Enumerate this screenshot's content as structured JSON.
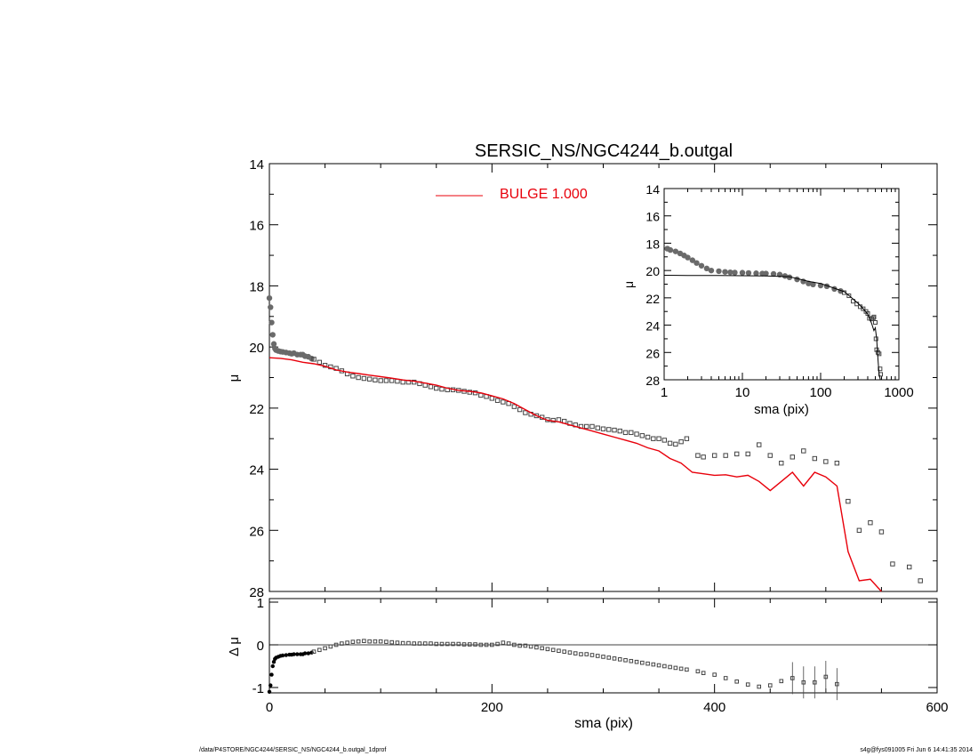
{
  "footer": {
    "path": "/data/P4STORE/NGC4244/SERSIC_NS/NGC4244_b.outgal_1dprof",
    "stamp": "s4g@fys091005  Fri Jun  6 14:41:35 2014"
  },
  "colors": {
    "model": "#e8000b",
    "points": "#555555",
    "axes": "#000000"
  },
  "chart_data": [
    {
      "id": "main",
      "type": "scatter",
      "title": "SERSIC_NS/NGC4244_b.outgal",
      "ylabel": "μ",
      "xlim": [
        0,
        600
      ],
      "ylim": [
        28,
        14
      ],
      "yticks": [
        14,
        16,
        18,
        20,
        22,
        24,
        26,
        28
      ],
      "legend": {
        "label": "BULGE  1.000",
        "placement": "top-center"
      },
      "series": [
        {
          "name": "BULGE  1.000",
          "kind": "line",
          "x": [
            0,
            10,
            20,
            30,
            40,
            50,
            60,
            70,
            80,
            90,
            100,
            110,
            120,
            130,
            140,
            150,
            160,
            170,
            180,
            190,
            200,
            210,
            220,
            230,
            240,
            250,
            260,
            270,
            280,
            290,
            300,
            310,
            320,
            330,
            340,
            350,
            360,
            370,
            380,
            390,
            400,
            410,
            420,
            430,
            440,
            450,
            460,
            470,
            480,
            490,
            500,
            510,
            520,
            530,
            540,
            550
          ],
          "y": [
            20.35,
            20.37,
            20.42,
            20.5,
            20.55,
            20.63,
            20.75,
            20.82,
            20.87,
            20.92,
            20.97,
            21.02,
            21.08,
            21.12,
            21.18,
            21.25,
            21.35,
            21.42,
            21.45,
            21.5,
            21.6,
            21.7,
            21.85,
            22.05,
            22.25,
            22.4,
            22.45,
            22.55,
            22.65,
            22.75,
            22.85,
            22.95,
            23.05,
            23.15,
            23.3,
            23.4,
            23.65,
            23.8,
            24.1,
            24.15,
            24.2,
            24.18,
            24.25,
            24.2,
            24.4,
            24.7,
            24.4,
            24.1,
            24.55,
            24.1,
            24.25,
            24.55,
            26.7,
            27.65,
            27.6,
            28.0
          ]
        },
        {
          "name": "",
          "kind": "points",
          "x": [
            0,
            1,
            2,
            3,
            4,
            5,
            6,
            8,
            10,
            12,
            15,
            18,
            20,
            22,
            25,
            28,
            30,
            32,
            35,
            38,
            40,
            45,
            50,
            55,
            60,
            65,
            70,
            75,
            80,
            85,
            90,
            95,
            100,
            105,
            110,
            115,
            120,
            125,
            130,
            135,
            140,
            145,
            150,
            155,
            160,
            165,
            170,
            175,
            180,
            185,
            190,
            195,
            200,
            205,
            210,
            215,
            220,
            225,
            230,
            235,
            240,
            245,
            250,
            255,
            260,
            265,
            270,
            275,
            280,
            285,
            290,
            295,
            300,
            305,
            310,
            315,
            320,
            325,
            330,
            335,
            340,
            345,
            350,
            355,
            360,
            365,
            370,
            375,
            385,
            390,
            400,
            410,
            420,
            430,
            440,
            450,
            460,
            470,
            480,
            490,
            500,
            510,
            520,
            530,
            540,
            550,
            560,
            575,
            585
          ],
          "y": [
            18.4,
            18.7,
            19.2,
            19.6,
            19.9,
            20.05,
            20.1,
            20.13,
            20.15,
            20.16,
            20.18,
            20.2,
            20.22,
            20.2,
            20.25,
            20.25,
            20.25,
            20.3,
            20.32,
            20.38,
            20.4,
            20.5,
            20.6,
            20.65,
            20.7,
            20.78,
            20.88,
            20.95,
            21.0,
            21.03,
            21.05,
            21.08,
            21.1,
            21.1,
            21.1,
            21.12,
            21.15,
            21.15,
            21.15,
            21.2,
            21.25,
            21.3,
            21.35,
            21.38,
            21.4,
            21.4,
            21.42,
            21.45,
            21.48,
            21.5,
            21.58,
            21.62,
            21.68,
            21.75,
            21.8,
            21.85,
            21.95,
            22.05,
            22.15,
            22.2,
            22.25,
            22.3,
            22.38,
            22.4,
            22.38,
            22.43,
            22.5,
            22.55,
            22.6,
            22.6,
            22.6,
            22.65,
            22.68,
            22.7,
            22.72,
            22.75,
            22.8,
            22.8,
            22.85,
            22.9,
            22.95,
            23.0,
            23.0,
            23.05,
            23.15,
            23.18,
            23.1,
            23.0,
            23.55,
            23.6,
            23.55,
            23.55,
            23.5,
            23.5,
            23.2,
            23.55,
            23.8,
            23.6,
            23.4,
            23.65,
            23.75,
            23.8,
            25.05,
            26.0,
            25.75,
            26.05,
            27.1,
            27.2,
            27.65
          ]
        }
      ]
    },
    {
      "id": "residual",
      "type": "scatter",
      "ylabel": "Δ μ",
      "xlabel": "sma (pix)",
      "xlim": [
        0,
        600
      ],
      "ylim": [
        -1.1,
        1.05
      ],
      "xticks": [
        0,
        200,
        400,
        600
      ],
      "yticks": [
        1,
        0,
        -1
      ],
      "series": [
        {
          "name": "",
          "kind": "points",
          "x": [
            0,
            1,
            2,
            3,
            4,
            5,
            6,
            8,
            10,
            12,
            15,
            18,
            20,
            22,
            25,
            28,
            30,
            32,
            35,
            38,
            40,
            45,
            50,
            55,
            60,
            65,
            70,
            75,
            80,
            85,
            90,
            95,
            100,
            105,
            110,
            115,
            120,
            125,
            130,
            135,
            140,
            145,
            150,
            155,
            160,
            165,
            170,
            175,
            180,
            185,
            190,
            195,
            200,
            205,
            210,
            215,
            220,
            225,
            230,
            235,
            240,
            245,
            250,
            255,
            260,
            265,
            270,
            275,
            280,
            285,
            290,
            295,
            300,
            305,
            310,
            315,
            320,
            325,
            330,
            335,
            340,
            345,
            350,
            355,
            360,
            365,
            370,
            375,
            385,
            390,
            400,
            410,
            420,
            430,
            440,
            450,
            460,
            470,
            480,
            490,
            500,
            510
          ],
          "y": [
            -1.1,
            -0.95,
            -0.7,
            -0.5,
            -0.4,
            -0.33,
            -0.3,
            -0.28,
            -0.26,
            -0.25,
            -0.24,
            -0.23,
            -0.23,
            -0.22,
            -0.22,
            -0.22,
            -0.22,
            -0.2,
            -0.2,
            -0.18,
            -0.16,
            -0.12,
            -0.08,
            -0.04,
            0.0,
            0.03,
            0.05,
            0.07,
            0.08,
            0.09,
            0.08,
            0.08,
            0.08,
            0.07,
            0.06,
            0.05,
            0.04,
            0.04,
            0.03,
            0.03,
            0.03,
            0.03,
            0.02,
            0.02,
            0.02,
            0.02,
            0.02,
            0.01,
            0.01,
            0.01,
            0.0,
            0.0,
            0.0,
            0.02,
            0.05,
            0.03,
            0.0,
            -0.02,
            -0.02,
            -0.04,
            -0.06,
            -0.08,
            -0.1,
            -0.12,
            -0.14,
            -0.16,
            -0.18,
            -0.2,
            -0.22,
            -0.22,
            -0.24,
            -0.26,
            -0.28,
            -0.3,
            -0.32,
            -0.34,
            -0.36,
            -0.38,
            -0.4,
            -0.42,
            -0.44,
            -0.46,
            -0.48,
            -0.5,
            -0.52,
            -0.54,
            -0.56,
            -0.58,
            -0.62,
            -0.66,
            -0.7,
            -0.78,
            -0.86,
            -0.93,
            -0.98,
            -0.95,
            -0.85,
            -0.78,
            -0.88,
            -0.88,
            -0.75,
            -0.92
          ]
        }
      ]
    },
    {
      "id": "inset",
      "type": "scatter",
      "ylabel": "μ",
      "xlabel": "sma (pix)",
      "xscale": "log",
      "xlim": [
        1,
        1000
      ],
      "ylim": [
        28,
        14
      ],
      "xticks": [
        1,
        10,
        100,
        1000
      ],
      "yticks": [
        14,
        16,
        18,
        20,
        22,
        24,
        26,
        28
      ],
      "series": [
        {
          "name": "",
          "kind": "line",
          "x": [
            1,
            2,
            5,
            10,
            20,
            40,
            70,
            100,
            150,
            200,
            250,
            300,
            350,
            400,
            450,
            480,
            500,
            520,
            540,
            560,
            580
          ],
          "y": [
            20.35,
            20.36,
            20.37,
            20.38,
            20.4,
            20.45,
            20.8,
            20.95,
            21.3,
            21.55,
            22.0,
            22.4,
            22.8,
            23.2,
            23.9,
            24.4,
            24.2,
            25.0,
            26.5,
            27.6,
            28.0
          ]
        },
        {
          "name": "",
          "kind": "points",
          "x": [
            1.1,
            1.2,
            1.4,
            1.6,
            1.8,
            2,
            2.3,
            2.6,
            3,
            3.5,
            4,
            5,
            6,
            7,
            8,
            10,
            12,
            15,
            18,
            20,
            25,
            30,
            35,
            40,
            50,
            60,
            70,
            80,
            100,
            120,
            150,
            180,
            200,
            230,
            260,
            290,
            320,
            350,
            380,
            400,
            420,
            450,
            470,
            480,
            500,
            510,
            520,
            540,
            560,
            575,
            585
          ],
          "y": [
            18.4,
            18.5,
            18.6,
            18.75,
            18.9,
            19.05,
            19.25,
            19.45,
            19.65,
            19.85,
            20.0,
            20.05,
            20.1,
            20.13,
            20.15,
            20.16,
            20.18,
            20.2,
            20.22,
            20.22,
            20.25,
            20.3,
            20.4,
            20.5,
            20.65,
            20.8,
            20.95,
            21.02,
            21.1,
            21.15,
            21.35,
            21.5,
            21.62,
            21.85,
            22.25,
            22.45,
            22.65,
            22.8,
            23.0,
            23.15,
            23.5,
            23.55,
            23.5,
            23.4,
            23.8,
            25.0,
            25.8,
            26.0,
            26.1,
            27.2,
            27.6
          ]
        }
      ]
    }
  ]
}
